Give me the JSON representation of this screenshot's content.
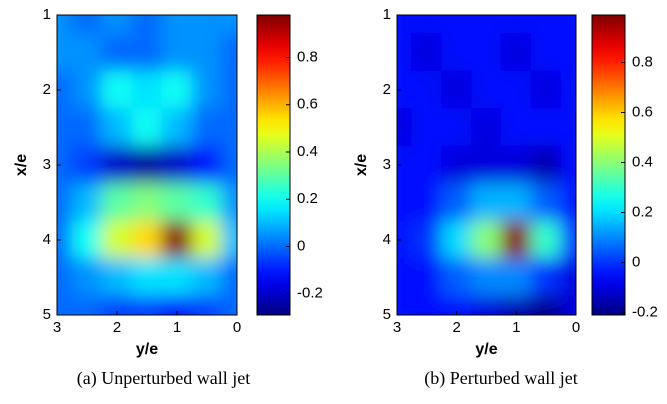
{
  "chart_data": [
    {
      "type": "heatmap",
      "caption": "(a) Unperturbed wall jet",
      "xlabel": "y/e",
      "ylabel": "x/e",
      "colormap": "jet",
      "xlim": [
        3,
        0
      ],
      "ylim": [
        1,
        5
      ],
      "xticks": [
        3,
        2,
        1,
        0
      ],
      "yticks": [
        1,
        2,
        3,
        4,
        5
      ],
      "x": [
        3,
        2.5,
        2,
        1.5,
        1,
        0.5,
        0
      ],
      "y": [
        1,
        1.5,
        2,
        2.5,
        3,
        3.5,
        4,
        4.5,
        5
      ],
      "z": [
        [
          0.05,
          0.0,
          0.05,
          0.0,
          0.05,
          0.05,
          0.05
        ],
        [
          0.05,
          0.05,
          0.0,
          0.0,
          0.05,
          0.05,
          0.0
        ],
        [
          0.0,
          0.05,
          0.2,
          0.15,
          0.2,
          0.05,
          0.0
        ],
        [
          0.0,
          0.0,
          0.1,
          0.2,
          0.1,
          0.0,
          0.0
        ],
        [
          0.0,
          -0.05,
          -0.2,
          -0.25,
          -0.2,
          -0.1,
          0.0
        ],
        [
          0.0,
          0.1,
          0.3,
          0.35,
          0.3,
          0.25,
          0.05
        ],
        [
          0.0,
          0.2,
          0.45,
          0.55,
          0.97,
          0.45,
          0.1
        ],
        [
          0.0,
          0.05,
          0.1,
          0.15,
          0.15,
          0.1,
          0.0
        ],
        [
          0.0,
          0.0,
          -0.05,
          -0.05,
          -0.1,
          -0.05,
          0.0
        ]
      ],
      "clim": [
        -0.29,
        0.98
      ],
      "cticks": [
        -0.2,
        0,
        0.2,
        0.4,
        0.6,
        0.8
      ]
    },
    {
      "type": "heatmap",
      "caption": "(b) Perturbed wall jet",
      "xlabel": "y/e",
      "ylabel": "x/e",
      "colormap": "jet",
      "xlim": [
        3,
        0
      ],
      "ylim": [
        1,
        5
      ],
      "xticks": [
        3,
        2,
        1,
        0
      ],
      "yticks": [
        1,
        2,
        3,
        4,
        5
      ],
      "x": [
        3,
        2.5,
        2,
        1.5,
        1,
        0.5,
        0
      ],
      "y": [
        1,
        1.5,
        2,
        2.5,
        3,
        3.5,
        4,
        4.5,
        5
      ],
      "z": [
        [
          -0.05,
          -0.05,
          -0.05,
          -0.05,
          -0.05,
          -0.05,
          -0.05
        ],
        [
          -0.05,
          -0.1,
          -0.05,
          -0.05,
          -0.1,
          -0.05,
          -0.05
        ],
        [
          -0.05,
          -0.05,
          -0.1,
          -0.05,
          -0.05,
          -0.1,
          -0.05
        ],
        [
          -0.1,
          -0.05,
          -0.05,
          -0.1,
          -0.05,
          -0.05,
          -0.05
        ],
        [
          -0.05,
          -0.05,
          -0.1,
          -0.1,
          -0.1,
          -0.15,
          -0.05
        ],
        [
          -0.05,
          -0.05,
          0.05,
          0.15,
          0.15,
          0.05,
          -0.05
        ],
        [
          -0.05,
          0.0,
          0.2,
          0.4,
          0.98,
          0.3,
          0.0
        ],
        [
          -0.05,
          -0.05,
          0.05,
          0.1,
          0.1,
          0.0,
          -0.1
        ],
        [
          -0.05,
          -0.05,
          -0.05,
          -0.1,
          -0.15,
          -0.2,
          -0.1
        ]
      ],
      "clim": [
        -0.21,
        0.99
      ],
      "cticks": [
        -0.2,
        0,
        0.2,
        0.4,
        0.6,
        0.8
      ]
    }
  ]
}
